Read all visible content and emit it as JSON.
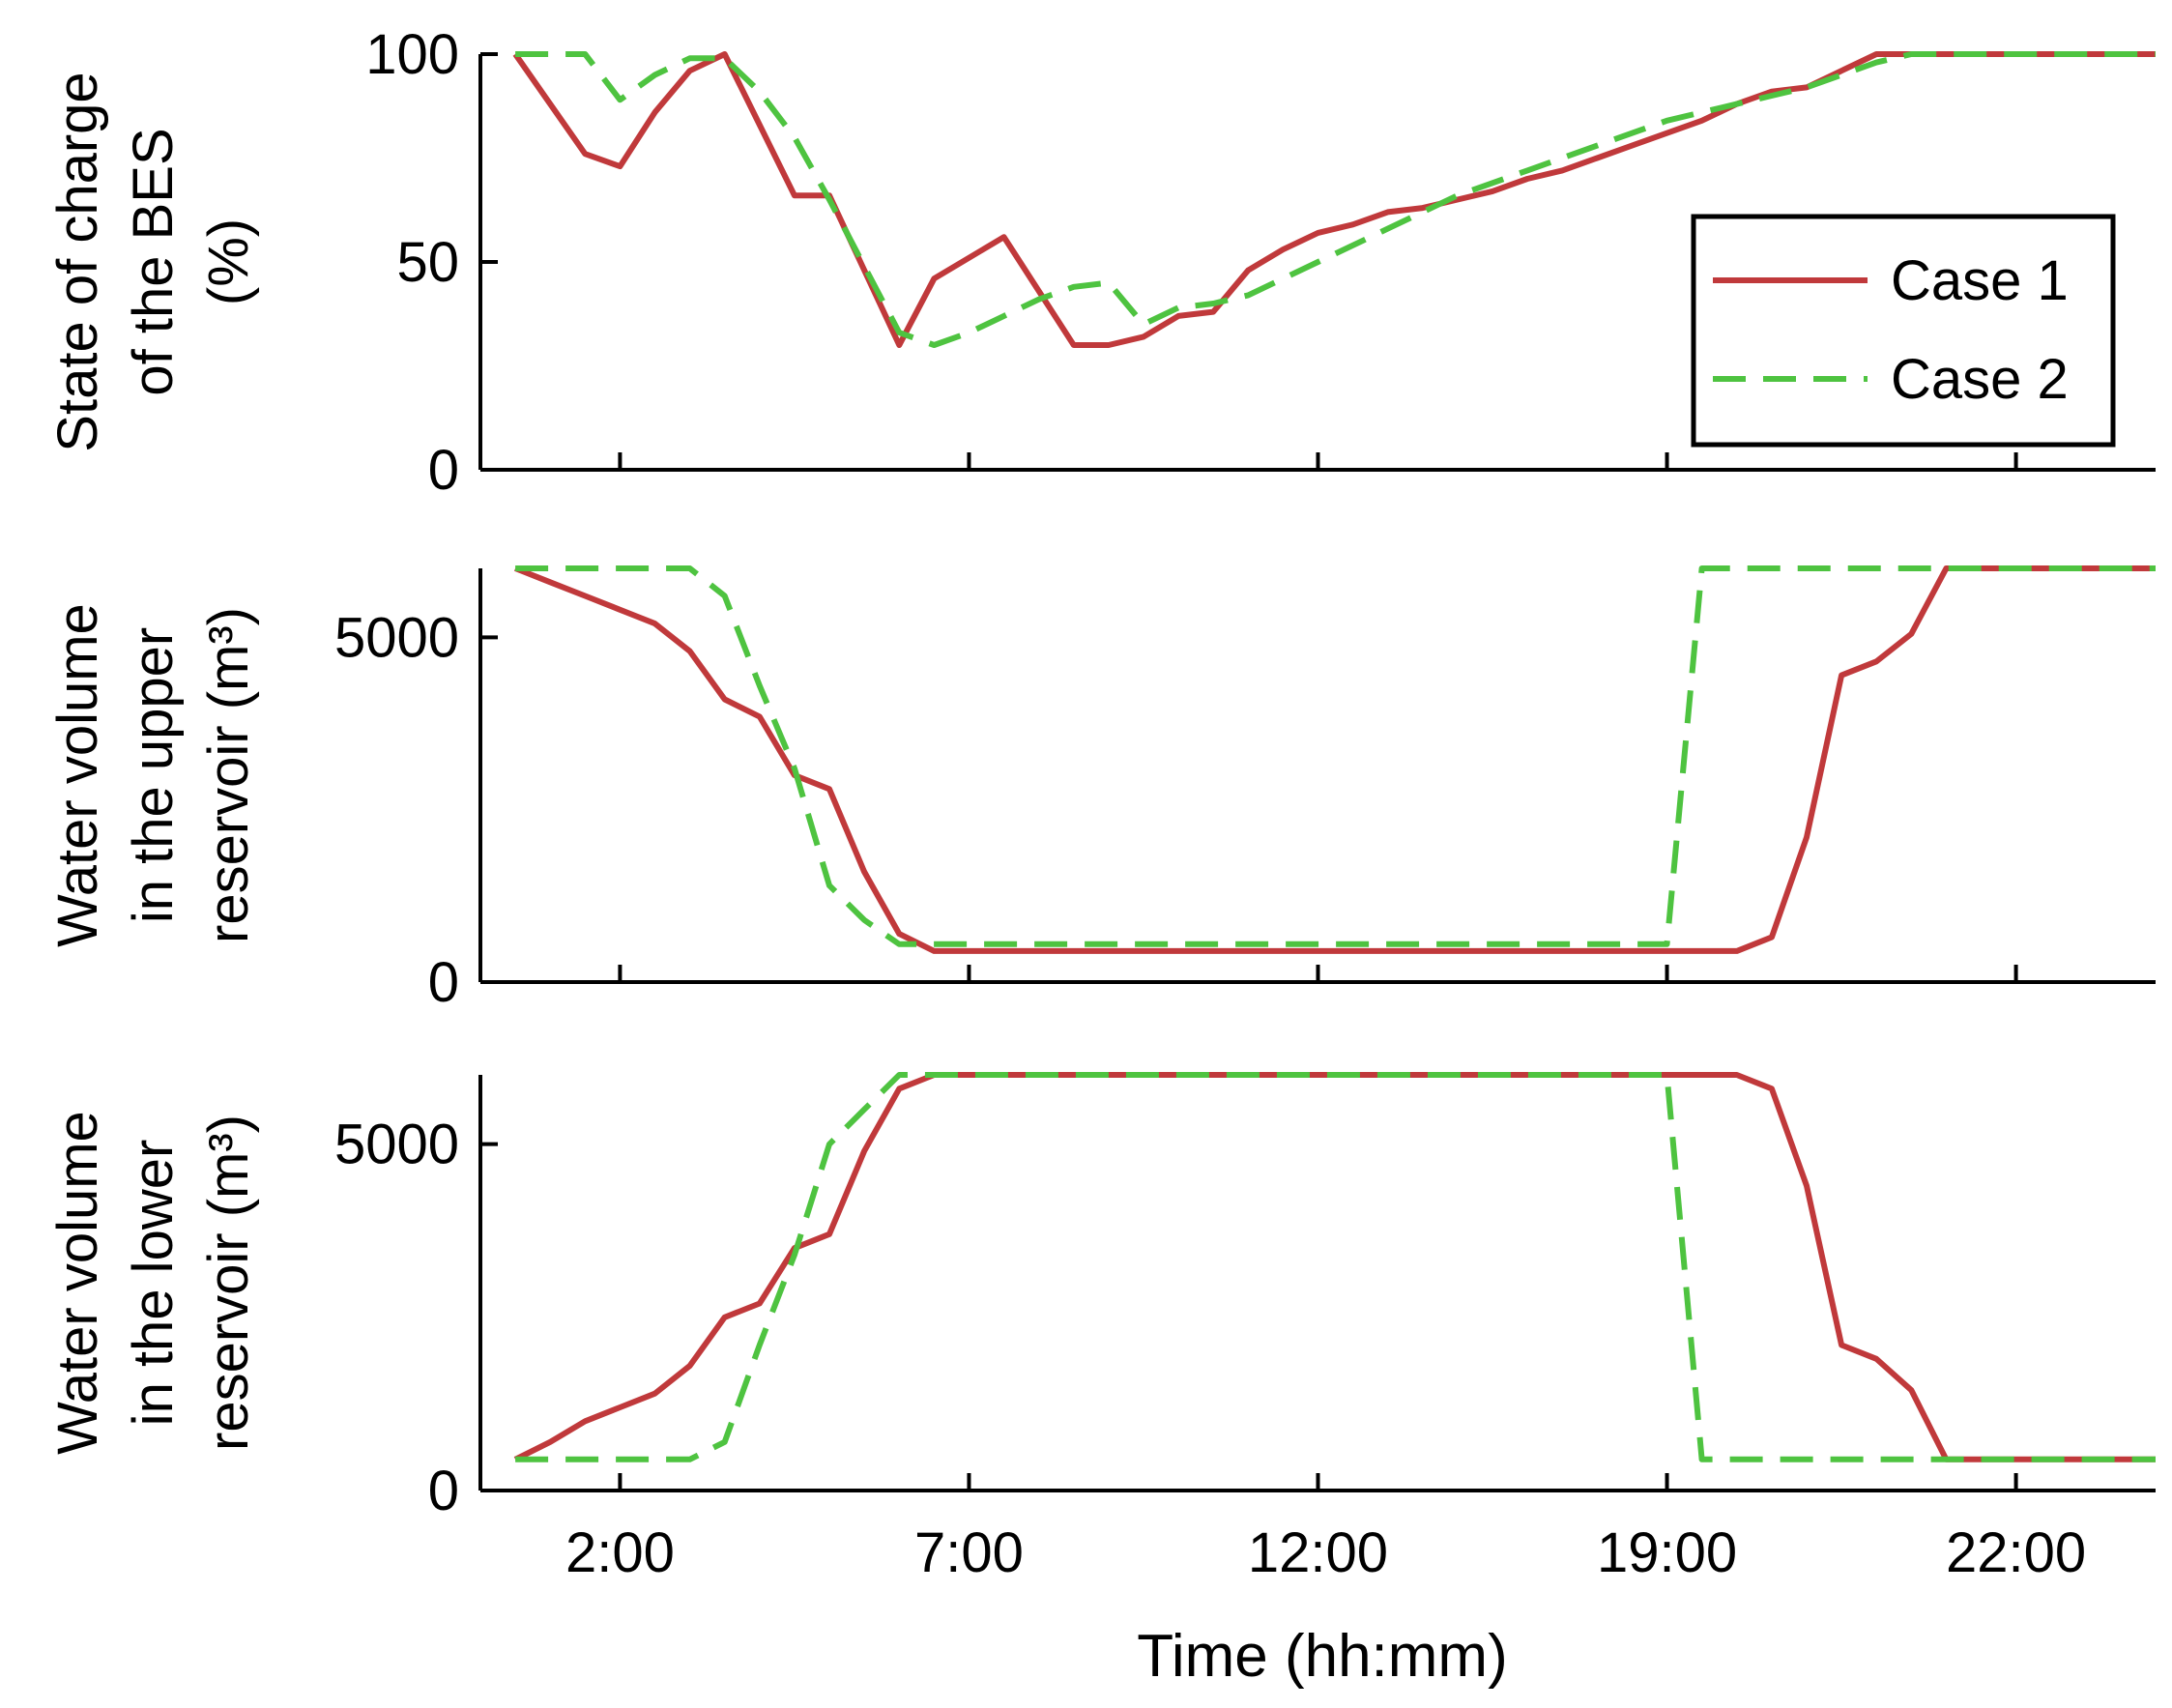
{
  "chart_data": [
    {
      "type": "line",
      "ylabel_lines": [
        "State of charge",
        "of the BES",
        "(%)"
      ],
      "ylim": [
        0,
        100
      ],
      "yticks": [
        0,
        50,
        100
      ],
      "xlim": [
        0,
        48
      ],
      "xticks": [
        4,
        14,
        24,
        34,
        44
      ],
      "xtick_labels": [
        "2:00",
        "7:00",
        "12:00",
        "19:00",
        "22:00"
      ],
      "show_xtick_labels": false,
      "legend": {
        "position": "top-right",
        "entries": [
          "Case 1",
          "Case 2"
        ]
      },
      "series": [
        {
          "name": "Case 1",
          "color": "#c0393b",
          "dash": "solid",
          "x": [
            1,
            3,
            4,
            5,
            6,
            7,
            9,
            10,
            12,
            13,
            15,
            17,
            18,
            19,
            20,
            21,
            22,
            23,
            24,
            25,
            26,
            27,
            28,
            29,
            30,
            31,
            32,
            33,
            34,
            35,
            36,
            37,
            38,
            39,
            40,
            41,
            42,
            43,
            44,
            45,
            46,
            47,
            48
          ],
          "values": [
            100,
            76,
            73,
            86,
            96,
            100,
            66,
            66,
            30,
            46,
            56,
            30,
            30,
            32,
            37,
            38,
            48,
            53,
            57,
            59,
            62,
            63,
            65,
            67,
            70,
            72,
            75,
            78,
            81,
            84,
            88,
            91,
            92,
            96,
            100,
            100,
            100,
            100,
            100,
            100,
            100,
            100,
            100
          ]
        },
        {
          "name": "Case 2",
          "color": "#4ec340",
          "dash": "dashed",
          "x": [
            1,
            2,
            3,
            4,
            5,
            6,
            7,
            8,
            9,
            10,
            11,
            12,
            13,
            14,
            15,
            16,
            17,
            18,
            19,
            20,
            21,
            22,
            23,
            24,
            25,
            26,
            27,
            28,
            29,
            30,
            31,
            32,
            33,
            34,
            35,
            36,
            37,
            38,
            39,
            40,
            41,
            42,
            43,
            44,
            45,
            46,
            47,
            48
          ],
          "values": [
            100,
            100,
            100,
            89,
            95,
            99,
            99,
            91,
            80,
            65,
            49,
            33,
            30,
            33,
            37,
            41,
            44,
            45,
            35,
            39,
            40,
            42,
            46,
            50,
            54,
            58,
            62,
            66,
            69,
            72,
            75,
            78,
            81,
            84,
            86,
            88,
            90,
            92,
            95,
            98,
            100,
            100,
            100,
            100,
            100,
            100,
            100,
            100
          ]
        }
      ]
    },
    {
      "type": "line",
      "ylabel_lines": [
        "Water volume",
        "in the upper",
        "reservoir (m³)"
      ],
      "ylim": [
        0,
        6000
      ],
      "yticks": [
        0,
        5000
      ],
      "xlim": [
        0,
        48
      ],
      "xticks": [
        4,
        14,
        24,
        34,
        44
      ],
      "xtick_labels": [
        "2:00",
        "7:00",
        "12:00",
        "19:00",
        "22:00"
      ],
      "show_xtick_labels": false,
      "series": [
        {
          "name": "Case 1",
          "color": "#c0393b",
          "dash": "solid",
          "x": [
            1,
            2,
            3,
            4,
            5,
            6,
            7,
            8,
            9,
            10,
            11,
            12,
            13,
            14,
            15,
            16,
            17,
            18,
            19,
            20,
            21,
            22,
            23,
            24,
            25,
            26,
            27,
            28,
            29,
            30,
            31,
            32,
            33,
            34,
            35,
            36,
            37,
            38,
            39,
            40,
            41,
            42,
            43,
            44,
            45,
            46,
            47,
            48
          ],
          "values": [
            6000,
            5800,
            5600,
            5400,
            5200,
            4800,
            4100,
            3850,
            3000,
            2800,
            1600,
            700,
            450,
            450,
            450,
            450,
            450,
            450,
            450,
            450,
            450,
            450,
            450,
            450,
            450,
            450,
            450,
            450,
            450,
            450,
            450,
            450,
            450,
            450,
            450,
            450,
            650,
            2100,
            4450,
            4650,
            5050,
            6000,
            6000,
            6000,
            6000,
            6000,
            6000,
            6000
          ]
        },
        {
          "name": "Case 2",
          "color": "#4ec340",
          "dash": "dashed",
          "x": [
            1,
            2,
            3,
            4,
            5,
            6,
            7,
            8,
            9,
            10,
            11,
            12,
            13,
            14,
            15,
            16,
            17,
            18,
            19,
            20,
            21,
            22,
            23,
            24,
            25,
            26,
            27,
            28,
            29,
            30,
            31,
            32,
            33,
            34,
            35,
            36,
            37,
            38,
            39,
            40,
            41,
            42,
            43,
            44,
            45,
            46,
            47,
            48
          ],
          "values": [
            6000,
            6000,
            6000,
            6000,
            6000,
            6000,
            5600,
            4300,
            3100,
            1400,
            900,
            550,
            550,
            550,
            550,
            550,
            550,
            550,
            550,
            550,
            550,
            550,
            550,
            550,
            550,
            550,
            550,
            550,
            550,
            550,
            550,
            550,
            550,
            550,
            6000,
            6000,
            6000,
            6000,
            6000,
            6000,
            6000,
            6000,
            6000,
            6000,
            6000,
            6000,
            6000,
            6000
          ]
        }
      ]
    },
    {
      "type": "line",
      "ylabel_lines": [
        "Water volume",
        "in the lower",
        "reservoir (m³)"
      ],
      "ylim": [
        0,
        6000
      ],
      "yticks": [
        0,
        5000
      ],
      "xlim": [
        0,
        48
      ],
      "xticks": [
        4,
        14,
        24,
        34,
        44
      ],
      "xtick_labels": [
        "2:00",
        "7:00",
        "12:00",
        "19:00",
        "22:00"
      ],
      "show_xtick_labels": true,
      "xlabel": "Time (hh:mm)",
      "series": [
        {
          "name": "Case 1",
          "color": "#c0393b",
          "dash": "solid",
          "x": [
            1,
            2,
            3,
            4,
            5,
            6,
            7,
            8,
            9,
            10,
            11,
            12,
            13,
            14,
            15,
            16,
            17,
            18,
            19,
            20,
            21,
            22,
            23,
            24,
            25,
            26,
            27,
            28,
            29,
            30,
            31,
            32,
            33,
            34,
            35,
            36,
            37,
            38,
            39,
            40,
            41,
            42,
            43,
            44,
            45,
            46,
            47,
            48
          ],
          "values": [
            450,
            700,
            1000,
            1200,
            1400,
            1800,
            2500,
            2700,
            3500,
            3700,
            4900,
            5800,
            6000,
            6000,
            6000,
            6000,
            6000,
            6000,
            6000,
            6000,
            6000,
            6000,
            6000,
            6000,
            6000,
            6000,
            6000,
            6000,
            6000,
            6000,
            6000,
            6000,
            6000,
            6000,
            6000,
            6000,
            5800,
            4400,
            2100,
            1900,
            1450,
            450,
            450,
            450,
            450,
            450,
            450,
            450
          ]
        },
        {
          "name": "Case 2",
          "color": "#4ec340",
          "dash": "dashed",
          "x": [
            1,
            2,
            3,
            4,
            5,
            6,
            7,
            8,
            9,
            10,
            11,
            12,
            13,
            14,
            15,
            16,
            17,
            18,
            19,
            20,
            21,
            22,
            23,
            24,
            25,
            26,
            27,
            28,
            29,
            30,
            31,
            32,
            33,
            34,
            35,
            36,
            37,
            38,
            39,
            40,
            41,
            42,
            43,
            44,
            45,
            46,
            47,
            48
          ],
          "values": [
            450,
            450,
            450,
            450,
            450,
            450,
            700,
            2100,
            3400,
            5000,
            5500,
            6000,
            6000,
            6000,
            6000,
            6000,
            6000,
            6000,
            6000,
            6000,
            6000,
            6000,
            6000,
            6000,
            6000,
            6000,
            6000,
            6000,
            6000,
            6000,
            6000,
            6000,
            6000,
            6000,
            450,
            450,
            450,
            450,
            450,
            450,
            450,
            450,
            450,
            450,
            450,
            450,
            450,
            450
          ]
        }
      ]
    }
  ]
}
